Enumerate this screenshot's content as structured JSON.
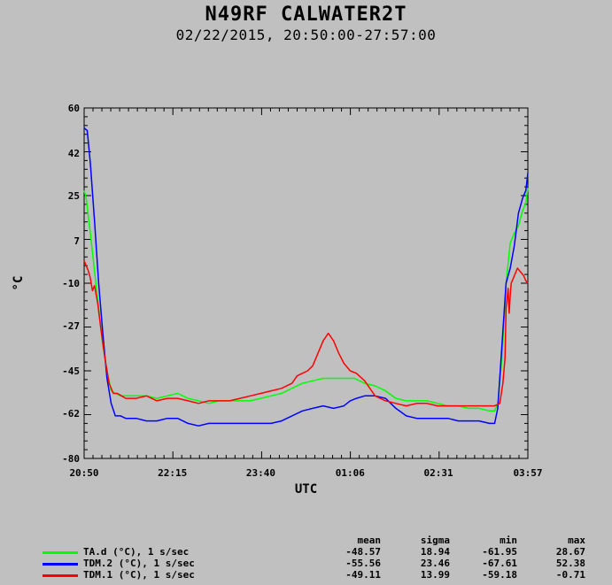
{
  "header": {
    "title": "N49RF CALWATER2T",
    "subtitle": "02/22/2015, 20:50:00-27:57:00"
  },
  "stats": {
    "headers": [
      "mean",
      "sigma",
      "min",
      "max"
    ],
    "rows": [
      {
        "label": "TA.d (°C), 1 s/sec",
        "color": "#00ff00",
        "mean": "-48.57",
        "sigma": "18.94",
        "min": "-61.95",
        "max": "28.67"
      },
      {
        "label": "TDM.2 (°C), 1 s/sec",
        "color": "#0000ff",
        "mean": "-55.56",
        "sigma": "23.46",
        "min": "-67.61",
        "max": "52.38"
      },
      {
        "label": "TDM.1 (°C), 1 s/sec",
        "color": "#ff0000",
        "mean": "-49.11",
        "sigma": "13.99",
        "min": "-59.18",
        "max": "-0.71"
      }
    ]
  },
  "chart_data": {
    "type": "line",
    "xlabel": "UTC",
    "ylabel": "°C",
    "xlim": [
      0,
      427
    ],
    "ylim": [
      -80,
      60
    ],
    "x_ticks": [
      0,
      85,
      170,
      256,
      341,
      427
    ],
    "x_tick_labels": [
      "20:50",
      "22:15",
      "23:40",
      "01:06",
      "02:31",
      "03:57"
    ],
    "y_ticks": [
      -80,
      -62,
      -45,
      -27,
      -10,
      7,
      25,
      42,
      60
    ],
    "y_tick_labels": [
      "-80",
      "-62",
      "-45",
      "-27",
      "-10",
      "7",
      "25",
      "42",
      "60"
    ],
    "grid": false,
    "series": [
      {
        "name": "TA.d (°C), 1 s/sec",
        "color": "#00ff00",
        "x": [
          0,
          2,
          6,
          10,
          14,
          18,
          22,
          26,
          30,
          35,
          40,
          50,
          60,
          70,
          80,
          90,
          100,
          110,
          120,
          130,
          140,
          150,
          160,
          170,
          180,
          190,
          200,
          210,
          220,
          230,
          240,
          250,
          256,
          260,
          270,
          280,
          290,
          300,
          310,
          320,
          330,
          340,
          350,
          360,
          370,
          380,
          390,
          395,
          398,
          402,
          406,
          410,
          414,
          418,
          422,
          425,
          427
        ],
        "y": [
          27,
          24,
          10,
          -5,
          -20,
          -35,
          -45,
          -53,
          -54,
          -55,
          -55,
          -55,
          -55,
          -56,
          -55,
          -54,
          -56,
          -57,
          -58,
          -57,
          -57,
          -57,
          -57,
          -56,
          -55,
          -54,
          -52,
          -50,
          -49,
          -48,
          -48,
          -48,
          -48,
          -48,
          -50,
          -51,
          -53,
          -56,
          -57,
          -57,
          -57,
          -58,
          -59,
          -59,
          -60,
          -60,
          -61,
          -61,
          -58,
          -40,
          -10,
          6,
          10,
          13,
          19,
          22,
          28
        ]
      },
      {
        "name": "TDM.2 (°C), 1 s/sec",
        "color": "#0000ff",
        "x": [
          0,
          3,
          6,
          10,
          14,
          18,
          22,
          26,
          30,
          35,
          40,
          50,
          60,
          70,
          80,
          90,
          100,
          110,
          120,
          130,
          140,
          150,
          160,
          170,
          180,
          190,
          200,
          210,
          220,
          230,
          240,
          250,
          256,
          262,
          270,
          280,
          290,
          300,
          310,
          320,
          330,
          340,
          350,
          360,
          370,
          380,
          390,
          395,
          398,
          402,
          406,
          410,
          414,
          418,
          422,
          425,
          427
        ],
        "y": [
          52,
          51,
          38,
          15,
          -10,
          -30,
          -48,
          -58,
          -63,
          -63,
          -64,
          -64,
          -65,
          -65,
          -64,
          -64,
          -66,
          -67,
          -66,
          -66,
          -66,
          -66,
          -66,
          -66,
          -66,
          -65,
          -63,
          -61,
          -60,
          -59,
          -60,
          -59,
          -57,
          -56,
          -55,
          -55,
          -56,
          -60,
          -63,
          -64,
          -64,
          -64,
          -64,
          -65,
          -65,
          -65,
          -66,
          -66,
          -60,
          -35,
          -10,
          -4,
          5,
          18,
          24,
          27,
          34
        ]
      },
      {
        "name": "TDM.1 (°C), 1 s/sec",
        "color": "#ff0000",
        "x": [
          0,
          2,
          4,
          6,
          8,
          10,
          13,
          16,
          20,
          24,
          28,
          32,
          36,
          40,
          50,
          60,
          70,
          80,
          90,
          100,
          110,
          120,
          130,
          140,
          150,
          160,
          170,
          180,
          190,
          200,
          205,
          210,
          215,
          220,
          225,
          230,
          235,
          240,
          245,
          250,
          256,
          262,
          270,
          280,
          290,
          300,
          310,
          320,
          330,
          340,
          350,
          360,
          370,
          380,
          390,
          395,
          400,
          403,
          405,
          406,
          408,
          409,
          410,
          411,
          413,
          415,
          417,
          419,
          421,
          423,
          425,
          427
        ],
        "y": [
          -1,
          -3,
          -5,
          -8,
          -13,
          -11,
          -18,
          -28,
          -40,
          -50,
          -54,
          -54,
          -55,
          -56,
          -56,
          -55,
          -57,
          -56,
          -56,
          -57,
          -58,
          -57,
          -57,
          -57,
          -56,
          -55,
          -54,
          -53,
          -52,
          -50,
          -47,
          -46,
          -45,
          -43,
          -38,
          -33,
          -30,
          -33,
          -38,
          -42,
          -45,
          -46,
          -49,
          -55,
          -57,
          -58,
          -59,
          -58,
          -58,
          -59,
          -59,
          -59,
          -59,
          -59,
          -59,
          -59,
          -58,
          -50,
          -40,
          -20,
          -12,
          -22,
          -15,
          -10,
          -8,
          -6,
          -4,
          -5,
          -6,
          -7,
          -9,
          -10
        ]
      }
    ]
  }
}
